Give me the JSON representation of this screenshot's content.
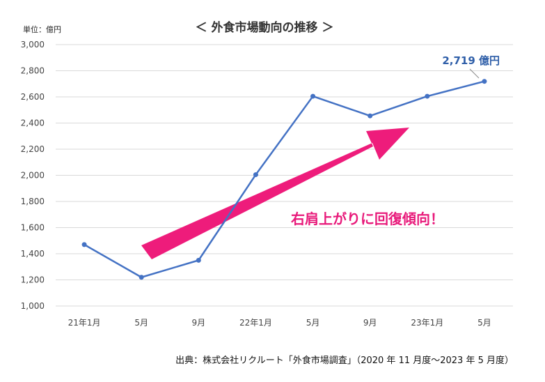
{
  "chart_data": {
    "type": "line",
    "title": "＜ 外食市場動向の推移 ＞",
    "unit_label": "単位：億円",
    "categories": [
      "21年1月",
      "5月",
      "9月",
      "22年1月",
      "5月",
      "9月",
      "23年1月",
      "5月"
    ],
    "series": [
      {
        "values": [
          1470,
          1220,
          1350,
          2005,
          2605,
          2455,
          2605,
          2719
        ]
      }
    ],
    "ylim": [
      1000,
      3000
    ],
    "yticks": [
      "1,000",
      "1,200",
      "1,400",
      "1,600",
      "1,800",
      "2,000",
      "2,200",
      "2,400",
      "2,600",
      "2,800",
      "3,000"
    ],
    "ytick_values": [
      1000,
      1200,
      1400,
      1600,
      1800,
      2000,
      2200,
      2400,
      2600,
      2800,
      3000
    ],
    "grid": true,
    "legend": "none",
    "line_color": "#4472C4",
    "callout": "2,719 億円",
    "annotation": "右肩上がりに回復傾向！",
    "annotation_color": "#E8197A",
    "source": "出典：株式会社リクルート「外食市場調査」（2020 年 11 月度～2023 年 5 月度）"
  }
}
